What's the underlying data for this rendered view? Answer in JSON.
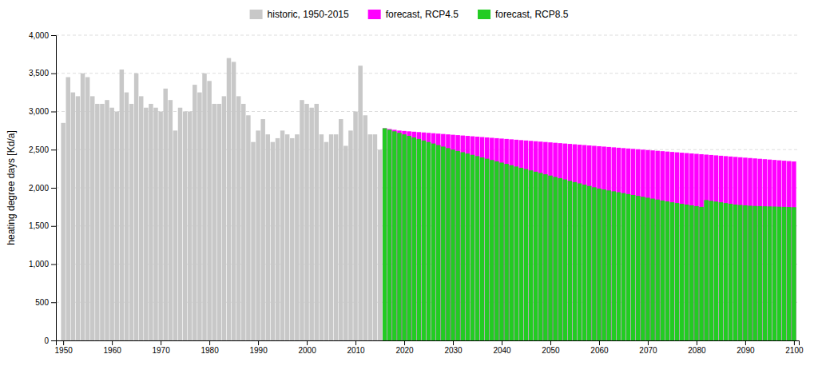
{
  "chart_data": {
    "type": "bar",
    "ylabel": "heating degree days [Kd/a]",
    "xlim": [
      1948.5,
      2101
    ],
    "xticks": [
      1950,
      1960,
      1970,
      1980,
      1990,
      2000,
      2010,
      2020,
      2030,
      2040,
      2050,
      2060,
      2070,
      2080,
      2090,
      2100
    ],
    "ylim": [
      0,
      4000
    ],
    "yticks": [
      0,
      500,
      {
        "value": 1000,
        "label": "1,000"
      },
      {
        "value": 1500,
        "label": "1,500"
      },
      {
        "value": 2000,
        "label": "2,000"
      },
      {
        "value": 2500,
        "label": "2,500"
      },
      {
        "value": 3000,
        "label": "3,000"
      },
      {
        "value": 3500,
        "label": "3,500"
      },
      {
        "value": 4000,
        "label": "4,000"
      }
    ],
    "grid": true,
    "legend": "top",
    "series": [
      {
        "name": "historic, 1950-2015",
        "color": "#c8c8c8",
        "x": [
          1950,
          1951,
          1952,
          1953,
          1954,
          1955,
          1956,
          1957,
          1958,
          1959,
          1960,
          1961,
          1962,
          1963,
          1964,
          1965,
          1966,
          1967,
          1968,
          1969,
          1970,
          1971,
          1972,
          1973,
          1974,
          1975,
          1976,
          1977,
          1978,
          1979,
          1980,
          1981,
          1982,
          1983,
          1984,
          1985,
          1986,
          1987,
          1988,
          1989,
          1990,
          1991,
          1992,
          1993,
          1994,
          1995,
          1996,
          1997,
          1998,
          1999,
          2000,
          2001,
          2002,
          2003,
          2004,
          2005,
          2006,
          2007,
          2008,
          2009,
          2010,
          2011,
          2012,
          2013,
          2014,
          2015
        ],
        "values": [
          2850,
          3450,
          3250,
          3200,
          3500,
          3450,
          3200,
          3100,
          3100,
          3150,
          3050,
          3000,
          3550,
          3250,
          3100,
          3500,
          3200,
          3050,
          3100,
          3050,
          3000,
          3300,
          3150,
          2750,
          3050,
          3000,
          3000,
          3350,
          3250,
          3500,
          3400,
          3100,
          3100,
          3200,
          3700,
          3650,
          3200,
          3100,
          2950,
          2600,
          2750,
          2900,
          2700,
          2600,
          2650,
          2750,
          2700,
          2650,
          2700,
          3150,
          3100,
          3050,
          3100,
          2700,
          2600,
          2700,
          2700,
          2900,
          2550,
          2750,
          3000,
          3600,
          2950,
          2700,
          2700,
          2500
        ]
      },
      {
        "name": "forecast, RCP4.5",
        "color": "#ff00ff",
        "x": [
          2016,
          2017,
          2018,
          2019,
          2020,
          2021,
          2022,
          2023,
          2024,
          2025,
          2026,
          2027,
          2028,
          2029,
          2030,
          2031,
          2032,
          2033,
          2034,
          2035,
          2036,
          2037,
          2038,
          2039,
          2040,
          2041,
          2042,
          2043,
          2044,
          2045,
          2046,
          2047,
          2048,
          2049,
          2050,
          2051,
          2052,
          2053,
          2054,
          2055,
          2056,
          2057,
          2058,
          2059,
          2060,
          2061,
          2062,
          2063,
          2064,
          2065,
          2066,
          2067,
          2068,
          2069,
          2070,
          2071,
          2072,
          2073,
          2074,
          2075,
          2076,
          2077,
          2078,
          2079,
          2080,
          2081,
          2082,
          2083,
          2084,
          2085,
          2086,
          2087,
          2088,
          2089,
          2090,
          2091,
          2092,
          2093,
          2094,
          2095,
          2096,
          2097,
          2098,
          2099,
          2100
        ],
        "values": [
          2780,
          2770,
          2760,
          2750,
          2745,
          2740,
          2735,
          2730,
          2725,
          2720,
          2715,
          2710,
          2705,
          2700,
          2695,
          2690,
          2685,
          2680,
          2675,
          2670,
          2665,
          2660,
          2655,
          2650,
          2645,
          2640,
          2635,
          2630,
          2625,
          2620,
          2615,
          2610,
          2605,
          2600,
          2595,
          2590,
          2585,
          2580,
          2575,
          2570,
          2565,
          2560,
          2555,
          2550,
          2545,
          2540,
          2535,
          2530,
          2525,
          2520,
          2515,
          2510,
          2505,
          2500,
          2495,
          2490,
          2485,
          2480,
          2475,
          2470,
          2465,
          2460,
          2455,
          2450,
          2445,
          2440,
          2435,
          2430,
          2425,
          2420,
          2415,
          2410,
          2405,
          2400,
          2395,
          2390,
          2385,
          2380,
          2375,
          2370,
          2365,
          2360,
          2355,
          2350,
          2345
        ]
      },
      {
        "name": "forecast, RCP8.5",
        "color": "#22cc22",
        "x": [
          2016,
          2017,
          2018,
          2019,
          2020,
          2021,
          2022,
          2023,
          2024,
          2025,
          2026,
          2027,
          2028,
          2029,
          2030,
          2031,
          2032,
          2033,
          2034,
          2035,
          2036,
          2037,
          2038,
          2039,
          2040,
          2041,
          2042,
          2043,
          2044,
          2045,
          2046,
          2047,
          2048,
          2049,
          2050,
          2051,
          2052,
          2053,
          2054,
          2055,
          2056,
          2057,
          2058,
          2059,
          2060,
          2061,
          2062,
          2063,
          2064,
          2065,
          2066,
          2067,
          2068,
          2069,
          2070,
          2071,
          2072,
          2073,
          2074,
          2075,
          2076,
          2077,
          2078,
          2079,
          2080,
          2081,
          2082,
          2083,
          2084,
          2085,
          2086,
          2087,
          2088,
          2089,
          2090,
          2091,
          2092,
          2093,
          2094,
          2095,
          2096,
          2097,
          2098,
          2099,
          2100
        ],
        "values": [
          2780,
          2760,
          2740,
          2720,
          2700,
          2680,
          2660,
          2640,
          2620,
          2600,
          2580,
          2560,
          2540,
          2520,
          2500,
          2483,
          2466,
          2449,
          2432,
          2415,
          2398,
          2381,
          2364,
          2347,
          2330,
          2313,
          2296,
          2279,
          2262,
          2245,
          2228,
          2211,
          2194,
          2177,
          2160,
          2143,
          2126,
          2109,
          2092,
          2075,
          2058,
          2041,
          2024,
          2007,
          1990,
          1978,
          1966,
          1954,
          1942,
          1930,
          1918,
          1906,
          1894,
          1882,
          1870,
          1858,
          1846,
          1834,
          1822,
          1810,
          1800,
          1790,
          1780,
          1770,
          1760,
          1750,
          1840,
          1830,
          1820,
          1810,
          1800,
          1790,
          1780,
          1775,
          1770,
          1765,
          1762,
          1760,
          1758,
          1756,
          1754,
          1752,
          1750,
          1748,
          1746
        ]
      }
    ]
  }
}
